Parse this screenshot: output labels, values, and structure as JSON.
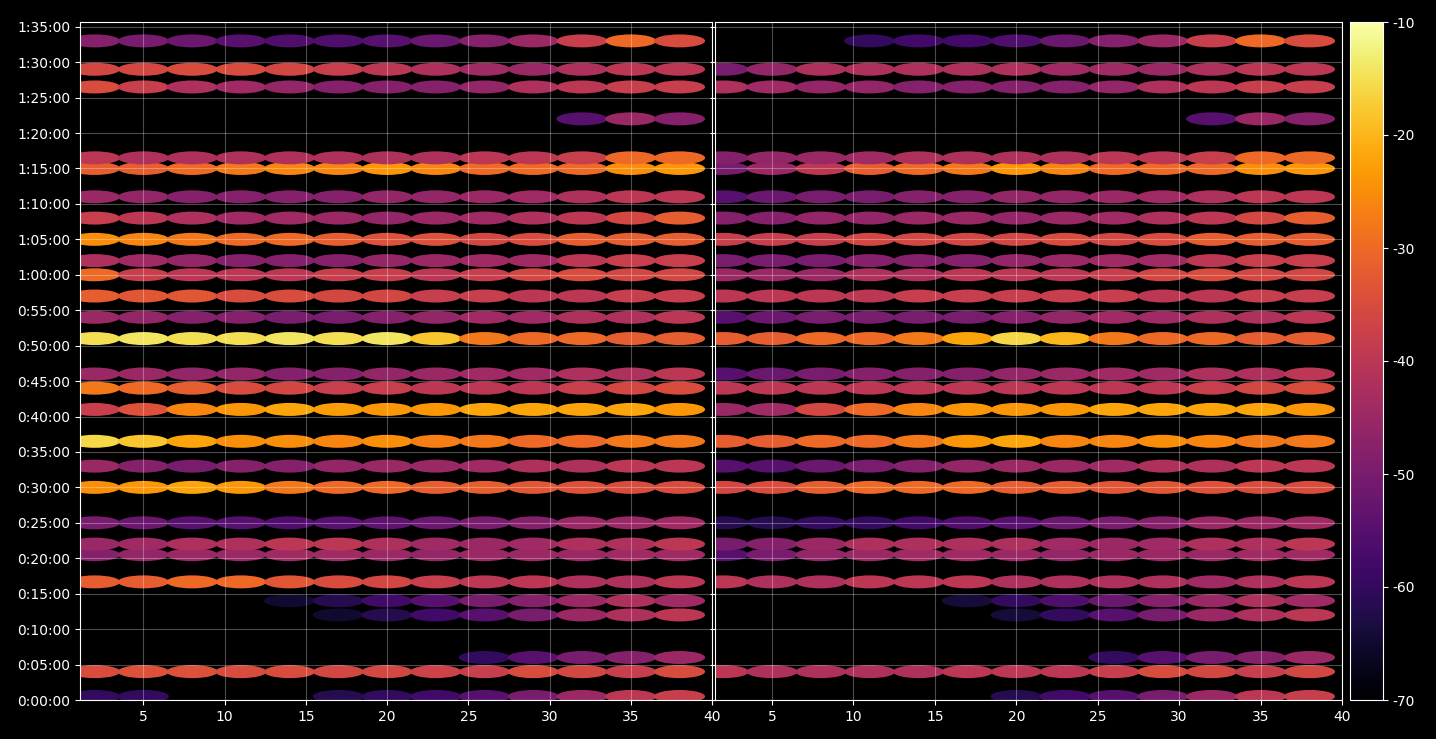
{
  "chart_data": [
    {
      "type": "heatmap",
      "color": "inferno",
      "grid": true,
      "tick_labels": true,
      "x": [
        2,
        5,
        8,
        11,
        14,
        17,
        20,
        23,
        26,
        29,
        32,
        35,
        38
      ],
      "y": [
        30,
        240,
        360,
        720,
        840,
        1000,
        1230,
        1320,
        1500,
        1800,
        1980,
        2190,
        2460,
        2640,
        2760,
        3060,
        3240,
        3420,
        3600,
        3720,
        3900,
        4080,
        4260,
        4500,
        4590,
        4920,
        5190,
        5340,
        5580
      ],
      "cells": [
        [
          -60,
          -60,
          null,
          null,
          null,
          -62,
          -60,
          -58,
          -55,
          -50,
          -45,
          -40,
          -38
        ],
        [
          -35,
          -34,
          -34,
          -35,
          -35,
          -36,
          -36,
          -37,
          -38,
          -35,
          -36,
          -38,
          -35
        ],
        [
          null,
          null,
          null,
          null,
          null,
          null,
          null,
          null,
          -60,
          -55,
          -50,
          -48,
          -45
        ],
        [
          null,
          null,
          null,
          null,
          null,
          -65,
          -62,
          -58,
          -55,
          -50,
          -45,
          -42,
          -40
        ],
        [
          null,
          null,
          null,
          null,
          -65,
          -62,
          -58,
          -55,
          -50,
          -48,
          -45,
          -42,
          -44
        ],
        [
          -32,
          -32,
          -30,
          -30,
          -33,
          -35,
          -36,
          -38,
          -40,
          -40,
          -42,
          -42,
          -40
        ],
        [
          -48,
          -46,
          -45,
          -45,
          -44,
          -44,
          -45,
          -46,
          -45,
          -45,
          -45,
          -44,
          -44
        ],
        [
          -45,
          -44,
          -42,
          -42,
          -40,
          -40,
          -42,
          -44,
          -45,
          -44,
          -42,
          -42,
          -40
        ],
        [
          -50,
          -52,
          -55,
          -55,
          -56,
          -55,
          -54,
          -52,
          -50,
          -48,
          -45,
          -45,
          -44
        ],
        [
          -25,
          -24,
          -22,
          -24,
          -28,
          -30,
          -30,
          -32,
          -32,
          -33,
          -34,
          -35,
          -35
        ],
        [
          -45,
          -48,
          -50,
          -48,
          -48,
          -46,
          -45,
          -45,
          -44,
          -42,
          -42,
          -40,
          -40
        ],
        [
          -16,
          -18,
          -22,
          -25,
          -25,
          -26,
          -25,
          -27,
          -28,
          -30,
          -30,
          -28,
          -28
        ],
        [
          -38,
          -34,
          -26,
          -24,
          -22,
          -23,
          -24,
          -24,
          -22,
          -22,
          -22,
          -22,
          -24
        ],
        [
          -28,
          -30,
          -32,
          -35,
          -36,
          -38,
          -38,
          -40,
          -40,
          -40,
          -38,
          -36,
          -35
        ],
        [
          -45,
          -45,
          -46,
          -46,
          -48,
          -48,
          -46,
          -45,
          -44,
          -44,
          -42,
          -42,
          -40
        ],
        [
          -15,
          -14,
          -15,
          -15,
          -14,
          -15,
          -14,
          -18,
          -28,
          -30,
          -30,
          -32,
          -32
        ],
        [
          -45,
          -46,
          -48,
          -48,
          -50,
          -50,
          -48,
          -46,
          -44,
          -44,
          -42,
          -42,
          -40
        ],
        [
          -32,
          -33,
          -33,
          -35,
          -35,
          -36,
          -36,
          -38,
          -38,
          -40,
          -40,
          -38,
          -38
        ],
        [
          -30,
          -38,
          -40,
          -40,
          -40,
          -38,
          -38,
          -40,
          -38,
          -36,
          -35,
          -36,
          -36
        ],
        [
          -42,
          -44,
          -46,
          -48,
          -48,
          -48,
          -46,
          -45,
          -44,
          -44,
          -40,
          -38,
          -38
        ],
        [
          -25,
          -26,
          -28,
          -30,
          -30,
          -32,
          -34,
          -34,
          -36,
          -35,
          -32,
          -32,
          -32
        ],
        [
          -38,
          -40,
          -42,
          -44,
          -44,
          -45,
          -46,
          -45,
          -44,
          -42,
          -40,
          -36,
          -32
        ],
        [
          -45,
          -46,
          -48,
          -48,
          -48,
          -48,
          -46,
          -46,
          -45,
          -44,
          -42,
          -40,
          -40
        ],
        [
          -32,
          -32,
          -30,
          -28,
          -26,
          -26,
          -24,
          -26,
          -30,
          -30,
          -30,
          -25,
          -24
        ],
        [
          -40,
          -42,
          -42,
          -42,
          -42,
          -42,
          -42,
          -42,
          -40,
          -40,
          -38,
          -30,
          -30
        ],
        [
          null,
          null,
          null,
          null,
          null,
          null,
          null,
          null,
          null,
          null,
          -55,
          -45,
          -48
        ],
        [
          -35,
          -38,
          -42,
          -44,
          -46,
          -48,
          -48,
          -48,
          -46,
          -42,
          -40,
          -38,
          -38
        ],
        [
          -36,
          -36,
          -35,
          -35,
          -36,
          -38,
          -40,
          -42,
          -44,
          -45,
          -42,
          -40,
          -40
        ],
        [
          -48,
          -50,
          -52,
          -55,
          -56,
          -56,
          -55,
          -52,
          -48,
          -45,
          -38,
          -30,
          -35
        ]
      ],
      "xlim": [
        1.1,
        40
      ],
      "xticks": [
        5,
        10,
        15,
        20,
        25,
        30,
        35,
        40
      ],
      "ylim": [
        0,
        5740
      ],
      "yticks": [
        {
          "value": 0,
          "label": "0:00:00"
        },
        {
          "value": 300,
          "label": "0:05:00"
        },
        {
          "value": 600,
          "label": "0:10:00"
        },
        {
          "value": 900,
          "label": "0:15:00"
        },
        {
          "value": 1200,
          "label": "0:20:00"
        },
        {
          "value": 1500,
          "label": "0:25:00"
        },
        {
          "value": 1800,
          "label": "0:30:00"
        },
        {
          "value": 2100,
          "label": "0:35:00"
        },
        {
          "value": 2400,
          "label": "0:40:00"
        },
        {
          "value": 2700,
          "label": "0:45:00"
        },
        {
          "value": 3000,
          "label": "0:50:00"
        },
        {
          "value": 3300,
          "label": "0:55:00"
        },
        {
          "value": 3600,
          "label": "1:00:00"
        },
        {
          "value": 3900,
          "label": "1:05:00"
        },
        {
          "value": 4200,
          "label": "1:10:00"
        },
        {
          "value": 4500,
          "label": "1:15:00"
        },
        {
          "value": 4800,
          "label": "1:20:00"
        },
        {
          "value": 5100,
          "label": "1:25:00"
        },
        {
          "value": 5400,
          "label": "1:30:00"
        },
        {
          "value": 5700,
          "label": "1:35:00"
        }
      ]
    },
    {
      "type": "heatmap",
      "color": "inferno",
      "grid": true,
      "tick_labels": "x",
      "x": [
        2,
        5,
        8,
        11,
        14,
        17,
        20,
        23,
        26,
        29,
        32,
        35,
        38
      ],
      "y": [
        30,
        240,
        360,
        720,
        840,
        1000,
        1230,
        1320,
        1500,
        1800,
        1980,
        2190,
        2460,
        2640,
        2760,
        3060,
        3240,
        3420,
        3600,
        3720,
        3900,
        4080,
        4260,
        4500,
        4590,
        4920,
        5190,
        5340,
        5580
      ],
      "cells": [
        [
          null,
          null,
          null,
          null,
          null,
          null,
          -62,
          -58,
          -55,
          -50,
          -45,
          -40,
          -38
        ],
        [
          -40,
          -42,
          -42,
          -42,
          -42,
          -40,
          -40,
          -40,
          -38,
          -35,
          -36,
          -38,
          -36
        ],
        [
          null,
          null,
          null,
          null,
          null,
          null,
          null,
          null,
          -60,
          -55,
          -50,
          -48,
          -45
        ],
        [
          null,
          null,
          null,
          null,
          null,
          null,
          -64,
          -60,
          -55,
          -50,
          -45,
          -42,
          -40
        ],
        [
          null,
          null,
          null,
          null,
          null,
          -64,
          -60,
          -56,
          -52,
          -48,
          -45,
          -42,
          -44
        ],
        [
          -40,
          -42,
          -42,
          -40,
          -40,
          -40,
          -42,
          -42,
          -42,
          -42,
          -44,
          -42,
          -40
        ],
        [
          -55,
          -50,
          -46,
          -45,
          -44,
          -44,
          -45,
          -46,
          -45,
          -45,
          -45,
          -44,
          -44
        ],
        [
          -50,
          -48,
          -45,
          -42,
          -42,
          -42,
          -42,
          -44,
          -45,
          -44,
          -42,
          -42,
          -40
        ],
        [
          -62,
          -62,
          -60,
          -60,
          -58,
          -56,
          -55,
          -52,
          -50,
          -48,
          -45,
          -45,
          -44
        ],
        [
          -36,
          -35,
          -32,
          -30,
          -30,
          -30,
          -32,
          -32,
          -33,
          -33,
          -34,
          -35,
          -35
        ],
        [
          -55,
          -55,
          -52,
          -50,
          -48,
          -46,
          -45,
          -45,
          -44,
          -42,
          -42,
          -40,
          -40
        ],
        [
          -32,
          -32,
          -30,
          -30,
          -28,
          -24,
          -22,
          -26,
          -26,
          -25,
          -26,
          -28,
          -28
        ],
        [
          -45,
          -44,
          -36,
          -30,
          -26,
          -24,
          -24,
          -24,
          -22,
          -22,
          -22,
          -22,
          -24
        ],
        [
          -40,
          -40,
          -40,
          -40,
          -40,
          -40,
          -40,
          -40,
          -40,
          -40,
          -38,
          -36,
          -35
        ],
        [
          -55,
          -52,
          -50,
          -48,
          -48,
          -48,
          -46,
          -45,
          -44,
          -44,
          -42,
          -42,
          -40
        ],
        [
          -32,
          -32,
          -30,
          -30,
          -28,
          -22,
          -16,
          -20,
          -28,
          -30,
          -30,
          -32,
          -32
        ],
        [
          -55,
          -52,
          -50,
          -50,
          -50,
          -50,
          -48,
          -46,
          -44,
          -44,
          -42,
          -42,
          -40
        ],
        [
          -40,
          -40,
          -40,
          -40,
          -38,
          -38,
          -38,
          -38,
          -38,
          -40,
          -40,
          -38,
          -38
        ],
        [
          -45,
          -45,
          -45,
          -42,
          -42,
          -40,
          -40,
          -40,
          -38,
          -36,
          -35,
          -36,
          -36
        ],
        [
          -50,
          -50,
          -50,
          -48,
          -48,
          -48,
          -46,
          -45,
          -44,
          -44,
          -40,
          -38,
          -38
        ],
        [
          -38,
          -38,
          -38,
          -36,
          -36,
          -36,
          -36,
          -35,
          -36,
          -35,
          -32,
          -32,
          -32
        ],
        [
          -48,
          -48,
          -46,
          -46,
          -45,
          -45,
          -46,
          -45,
          -44,
          -42,
          -40,
          -36,
          -32
        ],
        [
          -55,
          -52,
          -50,
          -50,
          -48,
          -48,
          -46,
          -46,
          -45,
          -44,
          -42,
          -40,
          -40
        ],
        [
          -50,
          -45,
          -40,
          -32,
          -30,
          -28,
          -24,
          -26,
          -30,
          -30,
          -30,
          -25,
          -24
        ],
        [
          -48,
          -46,
          -45,
          -44,
          -42,
          -42,
          -42,
          -42,
          -40,
          -40,
          -38,
          -30,
          -30
        ],
        [
          null,
          null,
          null,
          null,
          null,
          null,
          null,
          null,
          null,
          null,
          -55,
          -45,
          -48
        ],
        [
          -42,
          -44,
          -46,
          -46,
          -48,
          -48,
          -48,
          -48,
          -46,
          -42,
          -40,
          -38,
          -38
        ],
        [
          -50,
          -46,
          -42,
          -42,
          -42,
          -42,
          -42,
          -44,
          -44,
          -45,
          -42,
          -40,
          -40
        ],
        [
          null,
          null,
          null,
          -60,
          -58,
          -58,
          -56,
          -52,
          -48,
          -45,
          -38,
          -30,
          -35
        ]
      ],
      "xlim": [
        1.5,
        40
      ],
      "xticks": [
        5,
        10,
        15,
        20,
        25,
        30,
        35,
        40
      ],
      "ylim": [
        0,
        5740
      ],
      "yticks": [
        0,
        300,
        600,
        900,
        1200,
        1500,
        1800,
        2100,
        2400,
        2700,
        3000,
        3300,
        3600,
        3900,
        4200,
        4500,
        4800,
        5100,
        5400,
        5700
      ],
      "colorbar": {
        "range": [
          -70,
          -10
        ],
        "ticks": [
          -70,
          -60,
          -50,
          -40,
          -30,
          -20,
          -10
        ]
      }
    }
  ]
}
